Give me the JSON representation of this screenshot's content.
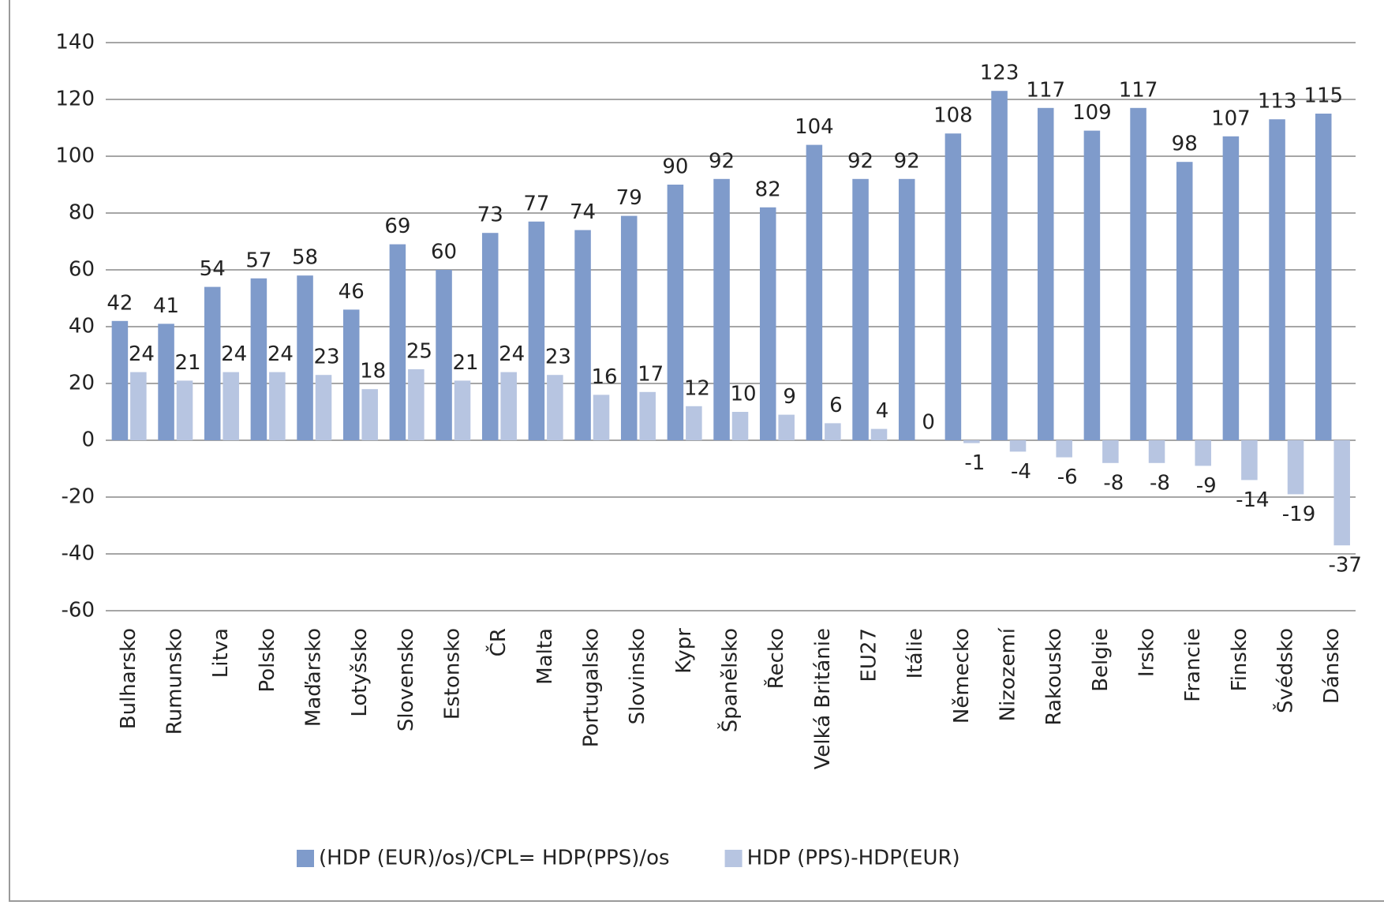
{
  "chart_data": {
    "type": "bar",
    "categories": [
      "Bulharsko",
      "Rumunsko",
      "Litva",
      "Polsko",
      "Maďarsko",
      "Lotyšsko",
      "Slovensko",
      "Estonsko",
      "ČR",
      "Malta",
      "Portugalsko",
      "Slovinsko",
      "Kypr",
      "Španělsko",
      "Řecko",
      "Velká Británie",
      "EU27",
      "Itálie",
      "Německo",
      "Nizozemí",
      "Rakousko",
      "Belgie",
      "Irsko",
      "Francie",
      "Finsko",
      "Švédsko",
      "Dánsko"
    ],
    "series": [
      {
        "name": "(HDP (EUR)/os)/CPL= HDP(PPS)/os",
        "color": "#7f9bcb",
        "values": [
          42,
          41,
          54,
          57,
          58,
          46,
          69,
          60,
          73,
          77,
          74,
          79,
          90,
          92,
          82,
          104,
          92,
          92,
          108,
          123,
          117,
          109,
          117,
          98,
          107,
          113,
          115
        ]
      },
      {
        "name": "HDP (PPS)-HDP(EUR)",
        "color": "#b7c5e1",
        "values": [
          24,
          21,
          24,
          24,
          23,
          18,
          25,
          21,
          24,
          23,
          16,
          17,
          12,
          10,
          9,
          6,
          4,
          0,
          -1,
          -4,
          -6,
          -8,
          -8,
          -9,
          -14,
          -19,
          -37
        ]
      }
    ],
    "ylim": [
      -60,
      140
    ],
    "yticks": [
      -60,
      -40,
      -20,
      0,
      20,
      40,
      60,
      80,
      100,
      120,
      140
    ],
    "grid": true,
    "legend": "bottom"
  }
}
